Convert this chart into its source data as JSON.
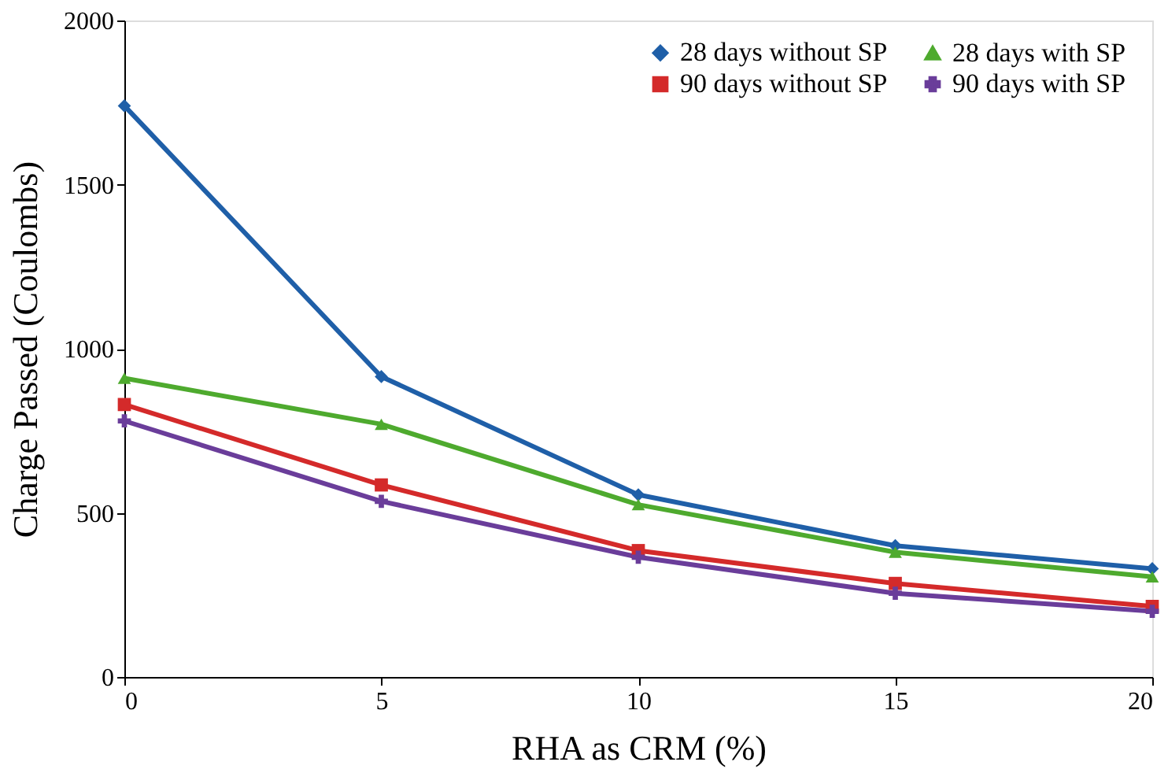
{
  "chart_data": {
    "type": "line",
    "xlabel": "RHA as CRM (%)",
    "ylabel": "Charge Passed (Coulombs)",
    "x": [
      0,
      5,
      10,
      15,
      20
    ],
    "xlim": [
      0,
      20
    ],
    "xticks": [
      0,
      5,
      10,
      15,
      20
    ],
    "ylim": [
      0,
      2000
    ],
    "yticks": [
      0,
      500,
      1000,
      1500,
      2000
    ],
    "grid": false,
    "legend": "top right",
    "line_style": "solid",
    "series": [
      {
        "name": "28 days without SP",
        "color": "#1f5fa8",
        "marker": "diamond",
        "values": [
          1740,
          915,
          555,
          400,
          330
        ]
      },
      {
        "name": "90 days without SP",
        "color": "#d42a2a",
        "marker": "square",
        "values": [
          830,
          585,
          385,
          285,
          215
        ]
      },
      {
        "name": "28 days with  SP",
        "color": "#4eaa2e",
        "marker": "triangle",
        "values": [
          910,
          770,
          525,
          380,
          305
        ]
      },
      {
        "name": "90 days with  SP",
        "color": "#6a3d9a",
        "marker": "cross",
        "values": [
          780,
          535,
          365,
          255,
          200
        ]
      }
    ]
  }
}
